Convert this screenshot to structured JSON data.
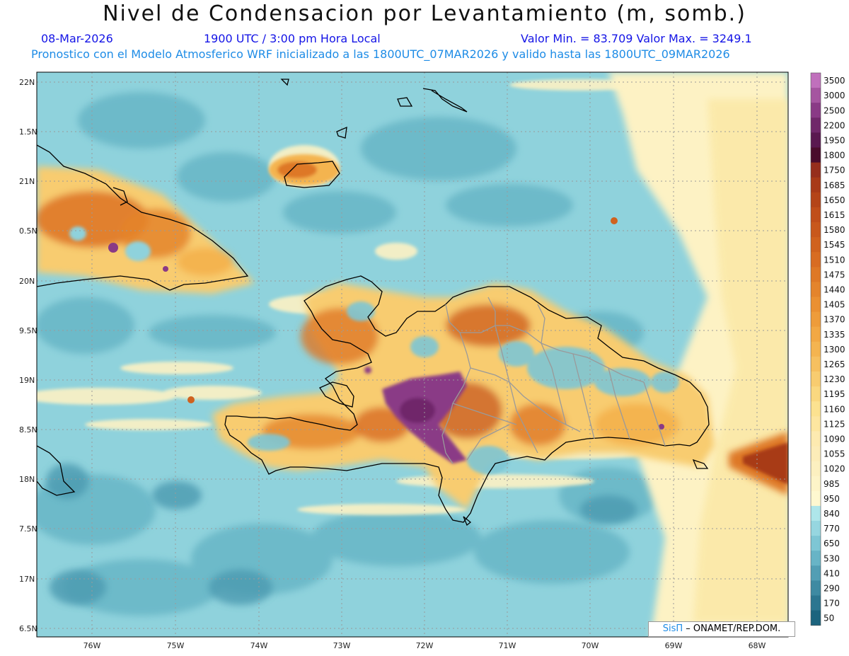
{
  "header": {
    "title": "Nivel de Condensacion por Levantamiento (m, somb.)",
    "date": "08-Mar-2026",
    "time": "1900 UTC / 3:00 pm Hora Local",
    "min_max": "Valor Min. = 83.709   Valor Max. = 3249.1",
    "model_info": "Pronostico con el Modelo Atmosferico WRF inicializado a las 1800UTC_07MAR2026 y valido hasta las  1800UTC_09MAR2026"
  },
  "axes": {
    "lat_labels": [
      "22N",
      "1.5N",
      "21N",
      "0.5N",
      "20N",
      "9.5N",
      "19N",
      "8.5N",
      "18N",
      "7.5N",
      "17N",
      "6.5N"
    ],
    "lon_labels": [
      "76W",
      "75W",
      "74W",
      "73W",
      "72W",
      "71W",
      "70W",
      "69W",
      "68W"
    ]
  },
  "colorbar": {
    "labels": [
      "3500",
      "3000",
      "2500",
      "2200",
      "1950",
      "1800",
      "1750",
      "1685",
      "1650",
      "1615",
      "1580",
      "1545",
      "1510",
      "1475",
      "1440",
      "1405",
      "1370",
      "1335",
      "1300",
      "1265",
      "1230",
      "1195",
      "1160",
      "1125",
      "1090",
      "1055",
      "1020",
      "985",
      "950",
      "840",
      "770",
      "650",
      "530",
      "410",
      "290",
      "170",
      "50"
    ],
    "colors": [
      "#c070bc",
      "#a555a0",
      "#8a3a86",
      "#70286a",
      "#5a1850",
      "#4a0c2c",
      "#962e1c",
      "#a83a18",
      "#b44418",
      "#c04e1a",
      "#c8581c",
      "#d0621e",
      "#d86c22",
      "#de7826",
      "#e4842c",
      "#ea9032",
      "#ee9c3a",
      "#f2a844",
      "#f4b450",
      "#f6c060",
      "#f8cc70",
      "#fad880",
      "#fce290",
      "#fde6a0",
      "#fdeab0",
      "#fcecb8",
      "#fcf0c0",
      "#fdf4c8",
      "#fef8d0",
      "#aee6ea",
      "#96d6e0",
      "#7ec6d4",
      "#68b4c6",
      "#529eb4",
      "#3e8aa2",
      "#2c7690",
      "#1c647e"
    ]
  },
  "credit": {
    "logo": "SisΠ",
    "text": " – ONAMET/REP.DOM."
  }
}
